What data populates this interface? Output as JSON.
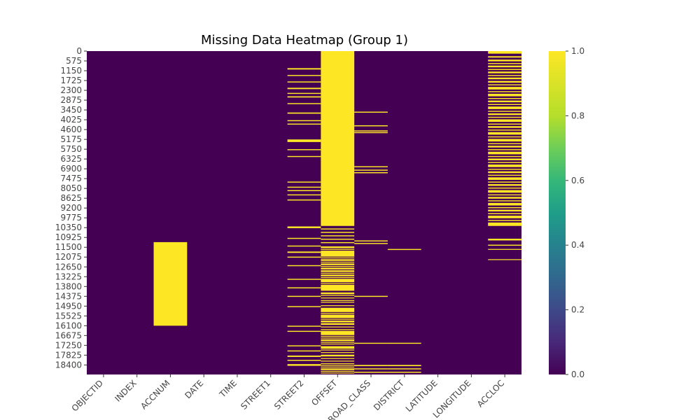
{
  "chart_data": {
    "type": "heatmap",
    "title": "Missing Data Heatmap (Group 1)",
    "xlabel": "",
    "ylabel": "",
    "columns": [
      "OBJECTID",
      "INDEX",
      "ACCNUM",
      "DATE",
      "TIME",
      "STREET1",
      "STREET2",
      "OFFSET",
      "ROAD_CLASS",
      "DISTRICT",
      "LATITUDE",
      "LONGITUDE",
      "ACCLOC"
    ],
    "row_tick_labels": [
      "0",
      "575",
      "1150",
      "1725",
      "2300",
      "2875",
      "3450",
      "4025",
      "4600",
      "5175",
      "5750",
      "6325",
      "6900",
      "7475",
      "8050",
      "8625",
      "9200",
      "9775",
      "10350",
      "10925",
      "11500",
      "12075",
      "12650",
      "13225",
      "13800",
      "14375",
      "14950",
      "15525",
      "16100",
      "16675",
      "17250",
      "17825",
      "18400"
    ],
    "row_range": [
      0,
      18960
    ],
    "value_range": [
      0,
      1
    ],
    "colormap": "viridis",
    "colorbar_ticks": [
      "0.0",
      "0.2",
      "0.4",
      "0.6",
      "0.8",
      "1.0"
    ],
    "colors": {
      "missing": "#fde725",
      "present": "#440154"
    },
    "missing": {
      "ACCNUM": [
        [
          11200,
          16100
        ]
      ],
      "STREET2": [
        [
          1000,
          1080
        ],
        [
          1400,
          1460
        ],
        [
          1780,
          1840
        ],
        [
          2150,
          2230
        ],
        [
          2450,
          2510
        ],
        [
          2650,
          2720
        ],
        [
          3050,
          3110
        ],
        [
          3600,
          3670
        ],
        [
          4050,
          4110
        ],
        [
          4250,
          4310
        ],
        [
          5180,
          5330
        ],
        [
          5750,
          5810
        ],
        [
          6150,
          6210
        ],
        [
          7650,
          7710
        ],
        [
          7950,
          8010
        ],
        [
          8150,
          8210
        ],
        [
          8400,
          8460
        ],
        [
          8700,
          8760
        ],
        [
          10280,
          10380
        ],
        [
          10950,
          11010
        ],
        [
          11400,
          11460
        ],
        [
          11750,
          11830
        ],
        [
          12050,
          12110
        ],
        [
          12550,
          12610
        ],
        [
          13350,
          13410
        ],
        [
          13850,
          13910
        ],
        [
          14350,
          14410
        ],
        [
          14950,
          15010
        ],
        [
          16100,
          16160
        ],
        [
          16400,
          16460
        ],
        [
          17250,
          17310
        ],
        [
          17550,
          17610
        ],
        [
          17850,
          17930
        ],
        [
          18100,
          18160
        ],
        [
          18350,
          18450
        ]
      ],
      "OFFSET": [
        [
          0,
          10250
        ],
        [
          10400,
          10460
        ],
        [
          10600,
          10660
        ],
        [
          10800,
          10860
        ],
        [
          11000,
          11060
        ],
        [
          11200,
          11260
        ],
        [
          11450,
          11550
        ],
        [
          11600,
          11650
        ],
        [
          11700,
          12050
        ],
        [
          12100,
          12150
        ],
        [
          12200,
          12300
        ],
        [
          12350,
          12400
        ],
        [
          12450,
          12550
        ],
        [
          12600,
          12650
        ],
        [
          12700,
          12800
        ],
        [
          12850,
          12950
        ],
        [
          13000,
          13050
        ],
        [
          13100,
          13200
        ],
        [
          13250,
          13300
        ],
        [
          13350,
          13550
        ],
        [
          13600,
          13650
        ],
        [
          13700,
          14050
        ],
        [
          14150,
          14250
        ],
        [
          14300,
          14350
        ],
        [
          14450,
          14500
        ],
        [
          14600,
          14650
        ],
        [
          14700,
          14750
        ],
        [
          14900,
          14950
        ],
        [
          15050,
          15300
        ],
        [
          15350,
          15400
        ],
        [
          15450,
          15650
        ],
        [
          15700,
          15750
        ],
        [
          15800,
          15900
        ],
        [
          15950,
          16050
        ],
        [
          16150,
          16200
        ],
        [
          16300,
          16350
        ],
        [
          16400,
          16650
        ],
        [
          16700,
          16750
        ],
        [
          16800,
          16850
        ],
        [
          16900,
          17000
        ],
        [
          17050,
          17100
        ],
        [
          17150,
          17200
        ],
        [
          17300,
          17450
        ],
        [
          17500,
          17550
        ],
        [
          17650,
          17700
        ],
        [
          17800,
          17900
        ],
        [
          18000,
          18050
        ],
        [
          18150,
          18200
        ],
        [
          18300,
          18350
        ],
        [
          18400,
          18450
        ],
        [
          18500,
          18550
        ],
        [
          18600,
          18700
        ],
        [
          18750,
          18800
        ],
        [
          18850,
          18900
        ]
      ],
      "ROAD_CLASS": [
        [
          3550,
          3610
        ],
        [
          4350,
          4410
        ],
        [
          4650,
          4710
        ],
        [
          4750,
          4810
        ],
        [
          6750,
          6810
        ],
        [
          6950,
          7010
        ],
        [
          7100,
          7160
        ],
        [
          11100,
          11160
        ],
        [
          11250,
          11310
        ],
        [
          14350,
          14410
        ],
        [
          17100,
          17160
        ],
        [
          18400,
          18470
        ],
        [
          18600,
          18660
        ],
        [
          18800,
          18860
        ]
      ],
      "DISTRICT": [
        [
          11600,
          11660
        ],
        [
          17100,
          17160
        ],
        [
          18400,
          18470
        ],
        [
          18600,
          18660
        ],
        [
          18800,
          18860
        ]
      ],
      "ACCLOC": [
        [
          0,
          150
        ],
        [
          300,
          380
        ],
        [
          500,
          600
        ],
        [
          700,
          760
        ],
        [
          850,
          950
        ],
        [
          1050,
          1110
        ],
        [
          1200,
          1300
        ],
        [
          1400,
          1460
        ],
        [
          1550,
          1650
        ],
        [
          1750,
          1850
        ],
        [
          1950,
          2010
        ],
        [
          2100,
          2250
        ],
        [
          2350,
          2410
        ],
        [
          2500,
          2650
        ],
        [
          2750,
          2810
        ],
        [
          2900,
          3000
        ],
        [
          3100,
          3160
        ],
        [
          3250,
          3400
        ],
        [
          3500,
          3560
        ],
        [
          3650,
          3750
        ],
        [
          3850,
          3910
        ],
        [
          4000,
          4150
        ],
        [
          4250,
          4310
        ],
        [
          4400,
          4500
        ],
        [
          4600,
          4660
        ],
        [
          4750,
          4900
        ],
        [
          5000,
          5060
        ],
        [
          5150,
          5300
        ],
        [
          5400,
          5460
        ],
        [
          5550,
          5650
        ],
        [
          5750,
          5810
        ],
        [
          5900,
          6050
        ],
        [
          6150,
          6210
        ],
        [
          6300,
          6400
        ],
        [
          6500,
          6560
        ],
        [
          6650,
          6800
        ],
        [
          6900,
          6960
        ],
        [
          7050,
          7150
        ],
        [
          7250,
          7310
        ],
        [
          7400,
          7550
        ],
        [
          7650,
          7710
        ],
        [
          7800,
          7900
        ],
        [
          8000,
          8060
        ],
        [
          8150,
          8300
        ],
        [
          8400,
          8460
        ],
        [
          8550,
          8650
        ],
        [
          8750,
          8810
        ],
        [
          8900,
          9050
        ],
        [
          9150,
          9210
        ],
        [
          9300,
          9400
        ],
        [
          9500,
          9560
        ],
        [
          9650,
          9800
        ],
        [
          9900,
          9960
        ],
        [
          10050,
          10250
        ],
        [
          11000,
          11100
        ],
        [
          11350,
          11410
        ],
        [
          11600,
          11650
        ],
        [
          12200,
          12250
        ]
      ]
    }
  }
}
